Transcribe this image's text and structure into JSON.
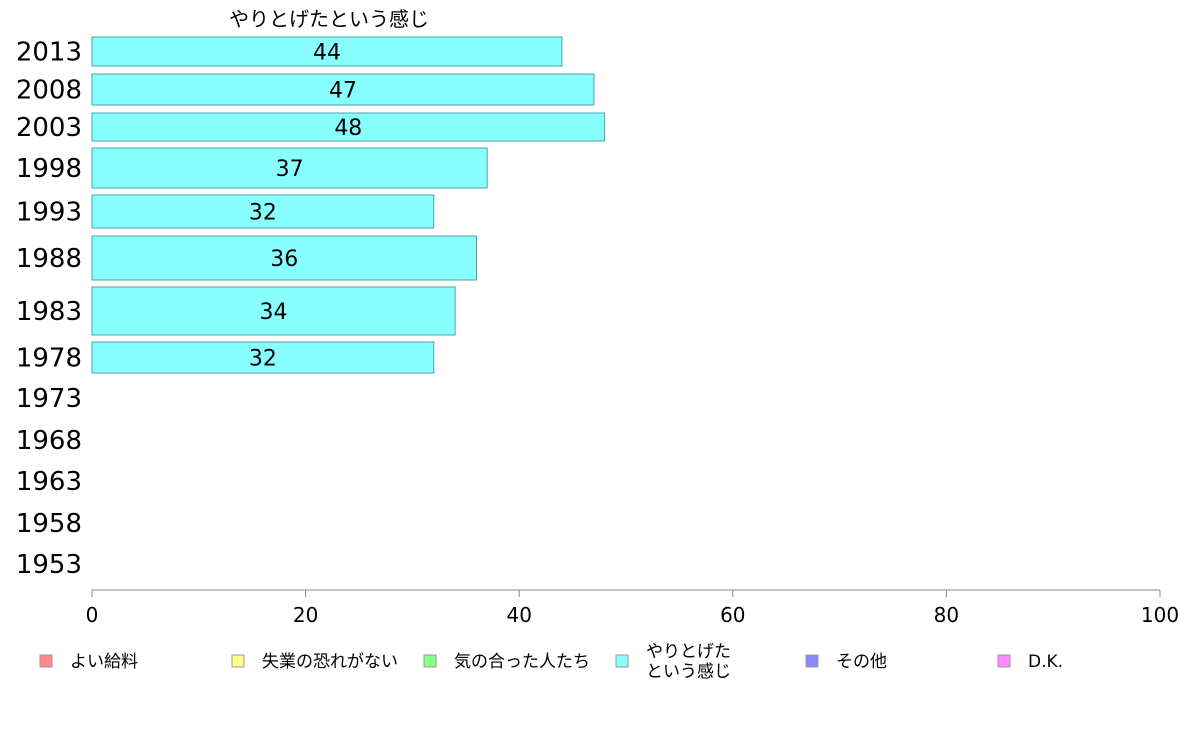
{
  "chart_data": {
    "type": "bar",
    "orientation": "horizontal",
    "title": "やりとげたという感じ",
    "categories": [
      "2013",
      "2008",
      "2003",
      "1998",
      "1993",
      "1988",
      "1983",
      "1978",
      "1973",
      "1968",
      "1963",
      "1958",
      "1953"
    ],
    "series": [
      {
        "name": "やりとげたという感じ",
        "color": "#88ffff",
        "values": [
          44,
          47,
          48,
          37,
          32,
          36,
          34,
          32,
          null,
          null,
          null,
          null,
          null
        ]
      }
    ],
    "xlim": [
      0,
      100
    ],
    "xticks": [
      "0",
      "20",
      "40",
      "60",
      "80",
      "100"
    ],
    "grid": false,
    "legend_position": "bottom",
    "legend": [
      {
        "label": "よい給料",
        "color": "#ff8888"
      },
      {
        "label": "失業の恐れがない",
        "color": "#ffff88"
      },
      {
        "label": "気の合った人たち",
        "color": "#88ff88"
      },
      {
        "label": "やりとげた\nという感じ",
        "color": "#88ffff"
      },
      {
        "label": "その他",
        "color": "#8888ff"
      },
      {
        "label": "D.K.",
        "color": "#ff88ff"
      }
    ]
  }
}
